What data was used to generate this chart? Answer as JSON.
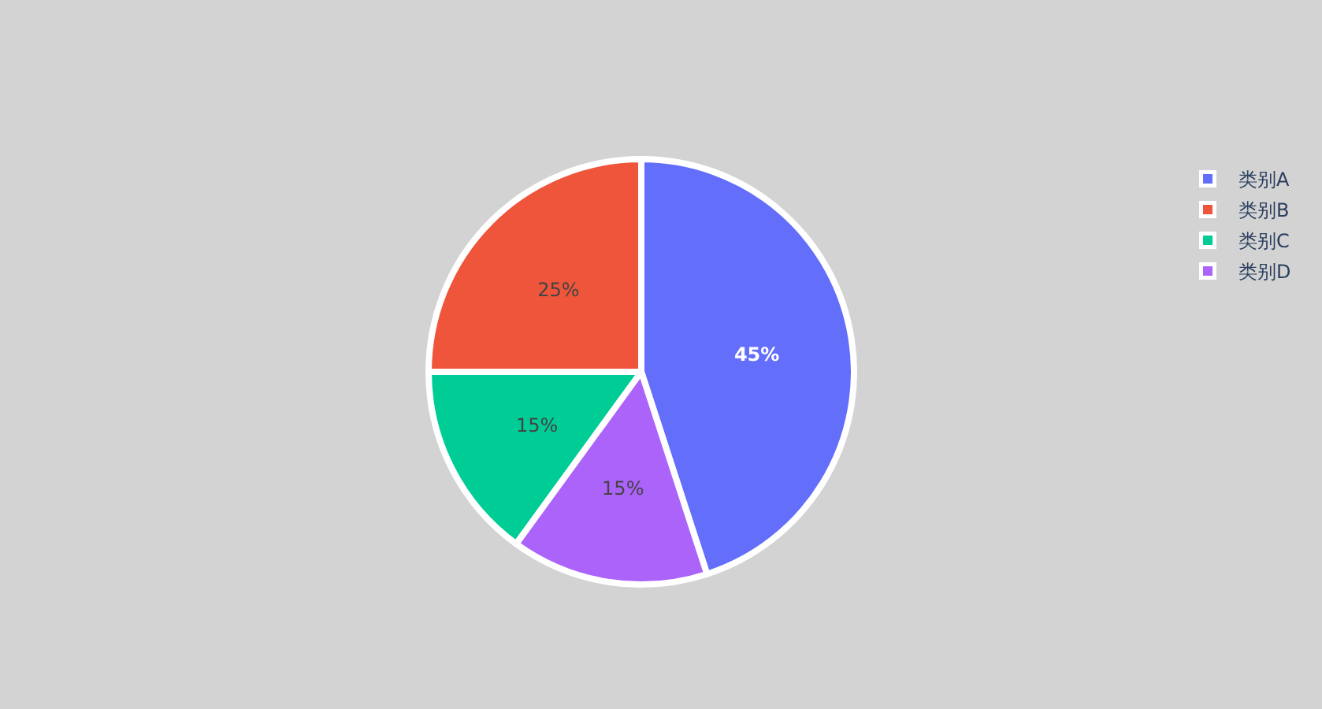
{
  "chart_data": {
    "type": "pie",
    "categories": [
      "类别A",
      "类别B",
      "类别C",
      "类别D"
    ],
    "values": [
      45,
      25,
      15,
      15
    ],
    "colors": [
      "#636efa",
      "#ef553b",
      "#00cc96",
      "#ab63fa"
    ],
    "value_labels": [
      "45%",
      "25%",
      "15%",
      "15%"
    ],
    "legend": "top right"
  }
}
